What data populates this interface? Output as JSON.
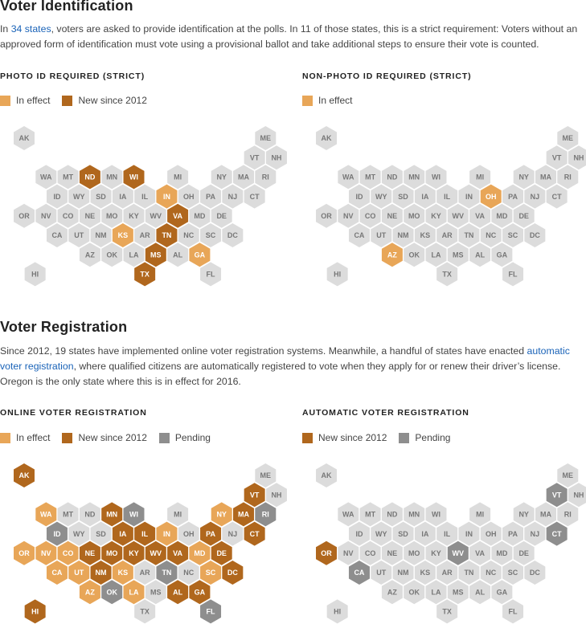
{
  "colors": {
    "in_effect": "#E8A658",
    "new_since_2012": "#B0671D",
    "pending": "#8E8E8E",
    "none": "#DCDCDC",
    "label_dark": "#777777",
    "label_light": "#FFFFFF"
  },
  "sections": {
    "id": {
      "title": "Voter Identification",
      "text_before_link": "In ",
      "link": "34 states",
      "text_after_link": ", voters are asked to provide identification at the polls. In 11 of those states, this is a strict requirement: Voters without an approved form of identification must vote using a provisional ballot and take additional steps to ensure their vote is counted."
    },
    "reg": {
      "title": "Voter Registration",
      "text_before_link": "Since 2012, 19 states have implemented online voter registration systems. Meanwhile, a handful of states have enacted ",
      "link": "automatic voter registration",
      "text_after_link": ", where qualified citizens are automatically registered to vote when they apply for or renew their driver’s license. Oregon is the only state where this is in effect for 2016."
    }
  },
  "legend_labels": {
    "in_effect": "In effect",
    "new_since_2012": "New since 2012",
    "pending": "Pending"
  },
  "states": [
    {
      "abbr": "AK",
      "row": 0,
      "col": 0
    },
    {
      "abbr": "ME",
      "row": 0,
      "col": 11
    },
    {
      "abbr": "VT",
      "row": 1,
      "col": 10
    },
    {
      "abbr": "NH",
      "row": 1,
      "col": 11
    },
    {
      "abbr": "WA",
      "row": 2,
      "col": 1
    },
    {
      "abbr": "MT",
      "row": 2,
      "col": 2
    },
    {
      "abbr": "ND",
      "row": 2,
      "col": 3
    },
    {
      "abbr": "MN",
      "row": 2,
      "col": 4
    },
    {
      "abbr": "WI",
      "row": 2,
      "col": 5
    },
    {
      "abbr": "MI",
      "row": 2,
      "col": 7
    },
    {
      "abbr": "NY",
      "row": 2,
      "col": 9
    },
    {
      "abbr": "MA",
      "row": 2,
      "col": 10
    },
    {
      "abbr": "RI",
      "row": 2,
      "col": 11
    },
    {
      "abbr": "ID",
      "row": 3,
      "col": 1
    },
    {
      "abbr": "WY",
      "row": 3,
      "col": 2
    },
    {
      "abbr": "SD",
      "row": 3,
      "col": 3
    },
    {
      "abbr": "IA",
      "row": 3,
      "col": 4
    },
    {
      "abbr": "IL",
      "row": 3,
      "col": 5
    },
    {
      "abbr": "IN",
      "row": 3,
      "col": 6
    },
    {
      "abbr": "OH",
      "row": 3,
      "col": 7
    },
    {
      "abbr": "PA",
      "row": 3,
      "col": 8
    },
    {
      "abbr": "NJ",
      "row": 3,
      "col": 9
    },
    {
      "abbr": "CT",
      "row": 3,
      "col": 10
    },
    {
      "abbr": "OR",
      "row": 4,
      "col": 0
    },
    {
      "abbr": "NV",
      "row": 4,
      "col": 1
    },
    {
      "abbr": "CO",
      "row": 4,
      "col": 2
    },
    {
      "abbr": "NE",
      "row": 4,
      "col": 3
    },
    {
      "abbr": "MO",
      "row": 4,
      "col": 4
    },
    {
      "abbr": "KY",
      "row": 4,
      "col": 5
    },
    {
      "abbr": "WV",
      "row": 4,
      "col": 6
    },
    {
      "abbr": "VA",
      "row": 4,
      "col": 7
    },
    {
      "abbr": "MD",
      "row": 4,
      "col": 8
    },
    {
      "abbr": "DE",
      "row": 4,
      "col": 9
    },
    {
      "abbr": "CA",
      "row": 5,
      "col": 1
    },
    {
      "abbr": "UT",
      "row": 5,
      "col": 2
    },
    {
      "abbr": "NM",
      "row": 5,
      "col": 3
    },
    {
      "abbr": "KS",
      "row": 5,
      "col": 4
    },
    {
      "abbr": "AR",
      "row": 5,
      "col": 5
    },
    {
      "abbr": "TN",
      "row": 5,
      "col": 6
    },
    {
      "abbr": "NC",
      "row": 5,
      "col": 7
    },
    {
      "abbr": "SC",
      "row": 5,
      "col": 8
    },
    {
      "abbr": "DC",
      "row": 5,
      "col": 9
    },
    {
      "abbr": "AZ",
      "row": 6,
      "col": 3
    },
    {
      "abbr": "OK",
      "row": 6,
      "col": 4
    },
    {
      "abbr": "LA",
      "row": 6,
      "col": 5
    },
    {
      "abbr": "MS",
      "row": 6,
      "col": 6
    },
    {
      "abbr": "AL",
      "row": 6,
      "col": 7
    },
    {
      "abbr": "GA",
      "row": 6,
      "col": 8
    },
    {
      "abbr": "HI",
      "row": 7,
      "col": 0
    },
    {
      "abbr": "TX",
      "row": 7,
      "col": 5
    },
    {
      "abbr": "FL",
      "row": 7,
      "col": 8
    }
  ],
  "maps": [
    {
      "key": "photo",
      "title": "PHOTO ID REQUIRED (STRICT)",
      "legend": [
        "in_effect",
        "new_since_2012"
      ],
      "in_effect": [
        "IN",
        "KS",
        "GA"
      ],
      "new_since_2012": [
        "ND",
        "WI",
        "VA",
        "TN",
        "MS",
        "TX"
      ],
      "pending": []
    },
    {
      "key": "nonphoto",
      "title": "NON-PHOTO ID REQUIRED (STRICT)",
      "legend": [
        "in_effect"
      ],
      "in_effect": [
        "OH",
        "AZ"
      ],
      "new_since_2012": [],
      "pending": []
    },
    {
      "key": "online",
      "title": "ONLINE VOTER REGISTRATION",
      "legend": [
        "in_effect",
        "new_since_2012",
        "pending"
      ],
      "in_effect": [
        "WA",
        "NY",
        "OR",
        "NV",
        "CO",
        "IN",
        "MD",
        "CA",
        "UT",
        "KS",
        "SC",
        "AZ",
        "LA"
      ],
      "new_since_2012": [
        "AK",
        "VT",
        "MN",
        "MA",
        "NE",
        "IA",
        "IL",
        "PA",
        "CT",
        "MO",
        "KY",
        "WV",
        "VA",
        "DE",
        "NM",
        "DC",
        "AL",
        "GA",
        "HI"
      ],
      "pending": [
        "WI",
        "RI",
        "ID",
        "TN",
        "OK",
        "FL"
      ]
    },
    {
      "key": "automatic",
      "title": "AUTOMATIC VOTER REGISTRATION",
      "legend": [
        "new_since_2012",
        "pending"
      ],
      "in_effect": [],
      "new_since_2012": [
        "OR"
      ],
      "pending": [
        "VT",
        "CT",
        "WV",
        "CA"
      ]
    }
  ]
}
